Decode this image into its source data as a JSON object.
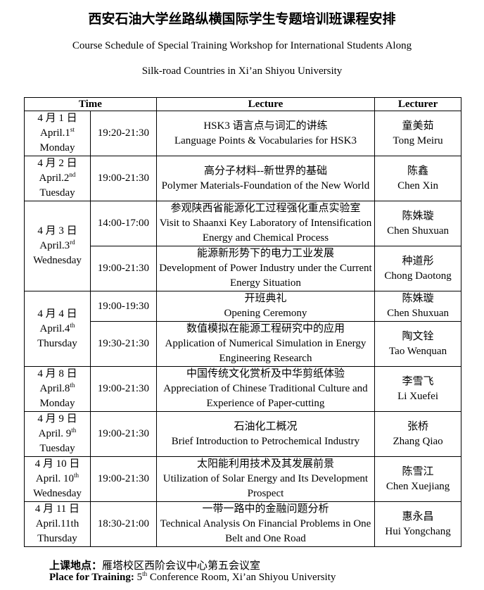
{
  "title": "西安石油大学丝路纵横国际学生专题培训班课程安排",
  "subtitle_line1": "Course Schedule of Special Training Workshop for International Students Along",
  "subtitle_line2": "Silk-road Countries in Xi’an Shiyou University",
  "headers": {
    "time": "Time",
    "lecture": "Lecture",
    "lecturer": "Lecturer"
  },
  "days": [
    {
      "date_cn": "4 月 1 日",
      "date_en": "April.1",
      "ordinal": "st",
      "weekday": "Monday",
      "sessions": [
        {
          "time": "19:20-21:30",
          "lecture_cn": "HSK3 语言点与词汇的讲练",
          "lecture_en": "Language Points & Vocabularies for HSK3",
          "lecturer_cn": "童美茹",
          "lecturer_en": "Tong Meiru"
        }
      ]
    },
    {
      "date_cn": "4 月 2 日",
      "date_en": "April.2",
      "ordinal": "nd",
      "weekday": "Tuesday",
      "sessions": [
        {
          "time": "19:00-21:30",
          "lecture_cn": "高分子材料--新世界的基础",
          "lecture_en": "Polymer Materials-Foundation of the New World",
          "lecturer_cn": "陈鑫",
          "lecturer_en": "Chen Xin"
        }
      ]
    },
    {
      "date_cn": "4 月 3 日",
      "date_en": "April.3",
      "ordinal": "rd",
      "weekday": "Wednesday",
      "sessions": [
        {
          "time": "14:00-17:00",
          "lecture_cn": "参观陕西省能源化工过程强化重点实验室",
          "lecture_en": "Visit to Shaanxi Key Laboratory of Intensification Energy and Chemical Process",
          "lecturer_cn": "陈姝璇",
          "lecturer_en": "Chen Shuxuan"
        },
        {
          "time": "19:00-21:30",
          "lecture_cn": "能源新形势下的电力工业发展",
          "lecture_en": "Development of Power Industry under the Current Energy Situation",
          "lecturer_cn": "种道彤",
          "lecturer_en": "Chong Daotong"
        }
      ]
    },
    {
      "date_cn": "4 月 4 日",
      "date_en": "April.4",
      "ordinal": "th",
      "weekday": "Thursday",
      "sessions": [
        {
          "time": "19:00-19:30",
          "lecture_cn": "开班典礼",
          "lecture_en": "Opening Ceremony",
          "lecturer_cn": "陈姝璇",
          "lecturer_en": "Chen Shuxuan"
        },
        {
          "time": "19:30-21:30",
          "lecture_cn": "数值模拟在能源工程研究中的应用",
          "lecture_en": "Application of Numerical Simulation in Energy Engineering Research",
          "lecturer_cn": "陶文铨",
          "lecturer_en": "Tao Wenquan"
        }
      ]
    },
    {
      "date_cn": "4 月 8 日",
      "date_en": "April.8",
      "ordinal": "th",
      "weekday": "Monday",
      "sessions": [
        {
          "time": "19:00-21:30",
          "lecture_cn": "中国传统文化赏析及中华剪纸体验",
          "lecture_en": "Appreciation of Chinese Traditional Culture and Experience of Paper-cutting",
          "lecturer_cn": "李雪飞",
          "lecturer_en": "Li Xuefei"
        }
      ]
    },
    {
      "date_cn": "4 月 9 日",
      "date_en": "April. 9",
      "ordinal": "th",
      "weekday": "Tuesday",
      "sessions": [
        {
          "time": "19:00-21:30",
          "lecture_cn": "石油化工概况",
          "lecture_en": "Brief Introduction to Petrochemical Industry",
          "lecturer_cn": "张桥",
          "lecturer_en": "Zhang Qiao"
        }
      ]
    },
    {
      "date_cn": "4 月 10 日",
      "date_en": "April. 10",
      "ordinal": "th",
      "weekday": "Wednesday",
      "sessions": [
        {
          "time": "19:00-21:30",
          "lecture_cn": "太阳能利用技术及其发展前景",
          "lecture_en": "Utilization of Solar Energy and Its Development Prospect",
          "lecturer_cn": "陈雪江",
          "lecturer_en": "Chen Xuejiang"
        }
      ]
    },
    {
      "date_cn": "4 月 11 日",
      "date_en": "April.11th",
      "ordinal": "",
      "weekday": "Thursday",
      "sessions": [
        {
          "time": "18:30-21:00",
          "lecture_cn": "一带一路中的金融问题分析",
          "lecture_en": "Technical Analysis On Financial Problems in One Belt and One Road",
          "lecturer_cn": "惠永昌",
          "lecturer_en": "Hui Yongchang"
        }
      ]
    }
  ],
  "footer": {
    "place_cn_label": "上课地点：",
    "place_cn": "雁塔校区西阶会议中心第五会议室",
    "place_en_label": "Place for Training:",
    "place_en_num": "5",
    "place_en_ord": "th",
    "place_en": " Conference Room, Xi’an Shiyou University"
  }
}
